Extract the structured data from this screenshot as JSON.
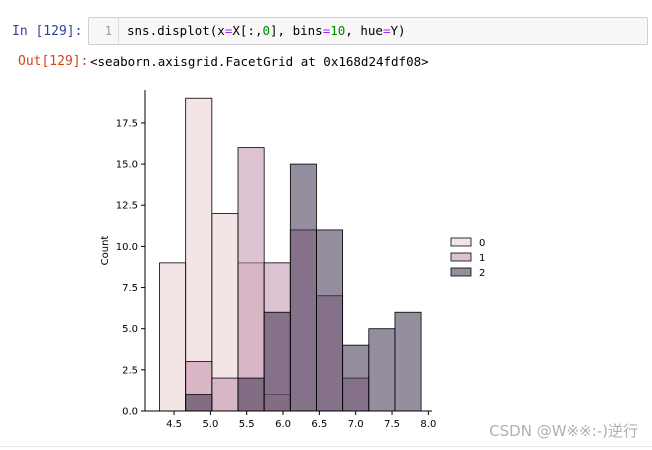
{
  "input_cell": {
    "prompt": "In  [129]:",
    "line_number": "1",
    "code_parts": {
      "a": "sns.displot(x",
      "eq1": "=",
      "b": "X[:,",
      "n0": "0",
      "c": "], bins",
      "eq2": "=",
      "n10": "10",
      "d": ", hue",
      "eq3": "=",
      "e": "Y)"
    }
  },
  "output_cell": {
    "prompt": "Out[129]:",
    "text": "<seaborn.axisgrid.FacetGrid at 0x168d24fdf08>"
  },
  "chart_data": {
    "type": "bar",
    "stacked": false,
    "ylabel": "Count",
    "xlabel": "",
    "xlim": [
      4.1,
      8.05
    ],
    "ylim": [
      0,
      19.5
    ],
    "x_ticks": [
      "4.5",
      "5.0",
      "5.5",
      "6.0",
      "6.5",
      "7.0",
      "7.5",
      "8.0"
    ],
    "y_ticks": [
      "0.0",
      "2.5",
      "5.0",
      "7.5",
      "10.0",
      "12.5",
      "15.0",
      "17.5"
    ],
    "bin_edges": [
      4.3,
      4.66,
      5.02,
      5.38,
      5.74,
      6.1,
      6.46,
      6.82,
      7.18,
      7.54,
      7.9
    ],
    "series": [
      {
        "name": "0",
        "color": "#eacfcf",
        "values": [
          9,
          19,
          12,
          9,
          1,
          0,
          0,
          0,
          0,
          0
        ]
      },
      {
        "name": "1",
        "color": "#c18fab",
        "values": [
          0,
          3,
          2,
          16,
          9,
          11,
          7,
          2,
          0,
          0
        ]
      },
      {
        "name": "2",
        "color": "#3d3150",
        "values": [
          0,
          1,
          0,
          2,
          6,
          15,
          11,
          4,
          5,
          6
        ]
      }
    ],
    "legend": {
      "position": "right",
      "entries": [
        "0",
        "1",
        "2"
      ]
    }
  },
  "watermark": "CSDN @W※※:-)逆行"
}
